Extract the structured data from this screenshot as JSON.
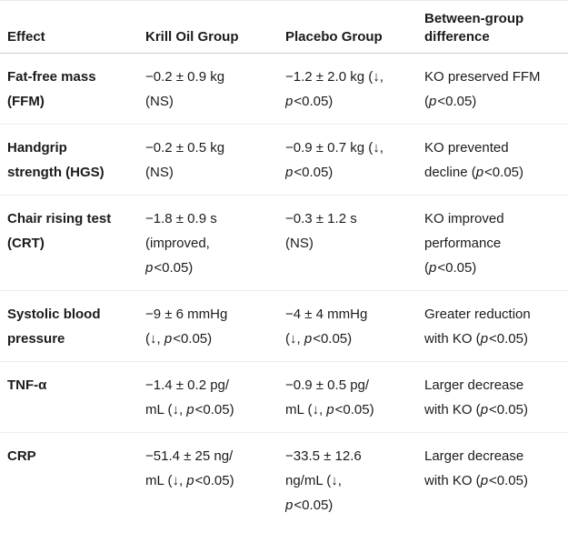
{
  "table": {
    "headers": [
      "Effect",
      "Krill Oil Group",
      "Placebo Group",
      "Between-group difference"
    ],
    "rows": [
      {
        "effect": [
          "Fat-free mass",
          "(FFM)"
        ],
        "krill_oil": [
          "−0.2 ± 0.9 kg",
          "(NS)"
        ],
        "placebo": [
          "−1.2 ± 2.0 kg (↓,",
          "p<0.05)"
        ],
        "difference": [
          "KO preserved FFM",
          "(p<0.05)"
        ]
      },
      {
        "effect": [
          "Handgrip",
          "strength (HGS)"
        ],
        "krill_oil": [
          "−0.2 ± 0.5 kg",
          "(NS)"
        ],
        "placebo": [
          "−0.9 ± 0.7 kg (↓,",
          "p<0.05)"
        ],
        "difference": [
          "KO prevented",
          "decline (p<0.05)"
        ]
      },
      {
        "effect": [
          "Chair rising test",
          "(CRT)"
        ],
        "krill_oil": [
          "−1.8 ± 0.9 s",
          "(improved,",
          "p<0.05)"
        ],
        "placebo": [
          "−0.3 ± 1.2 s",
          "(NS)"
        ],
        "difference": [
          "KO improved",
          "performance",
          "(p<0.05)"
        ]
      },
      {
        "effect": [
          "Systolic blood",
          "pressure"
        ],
        "krill_oil": [
          "−9 ± 6 mmHg",
          "(↓, p<0.05)"
        ],
        "placebo": [
          "−4 ± 4 mmHg",
          "(↓, p<0.05)"
        ],
        "difference": [
          "Greater reduction",
          "with KO (p<0.05)"
        ]
      },
      {
        "effect": [
          "TNF-α"
        ],
        "krill_oil": [
          "−1.4 ± 0.2 pg/",
          "mL (↓, p<0.05)"
        ],
        "placebo": [
          "−0.9 ± 0.5 pg/",
          "mL (↓, p<0.05)"
        ],
        "difference": [
          "Larger decrease",
          "with KO (p<0.05)"
        ]
      },
      {
        "effect": [
          "CRP"
        ],
        "krill_oil": [
          "−51.4 ± 25 ng/",
          "mL (↓, p<0.05)"
        ],
        "placebo": [
          "−33.5 ± 12.6",
          "ng/mL (↓,",
          "p<0.05)"
        ],
        "difference": [
          "Larger decrease",
          "with KO (p<0.05)"
        ]
      }
    ]
  },
  "colors": {
    "text": "#1b1b1b",
    "header_divider": "#d0d0d0",
    "row_divider": "#ececec",
    "background": "#ffffff"
  }
}
